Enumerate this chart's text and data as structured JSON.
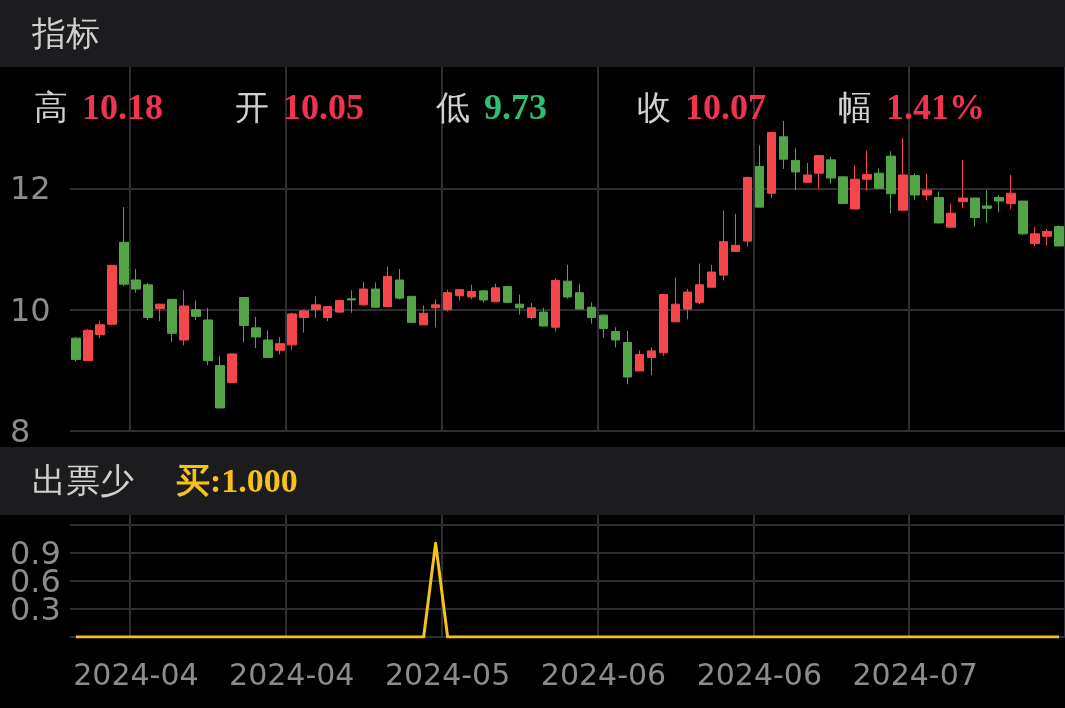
{
  "chart_data": [
    {
      "type": "candlestick",
      "title": "指标",
      "annotations": [
        "高 10.18",
        "开 10.05",
        "低 9.73",
        "收 10.07",
        "幅 1.41%"
      ],
      "categories": [
        null,
        null,
        null,
        null,
        null,
        "2024-04",
        null,
        null,
        null,
        null,
        null,
        null,
        null,
        null,
        null,
        null,
        null,
        null,
        "2024-04",
        null,
        null,
        null,
        null,
        null,
        null,
        null,
        null,
        null,
        null,
        null,
        null,
        "2024-05",
        null,
        null,
        null,
        null,
        null,
        null,
        null,
        null,
        null,
        null,
        null,
        null,
        "2024-06",
        null,
        null,
        null,
        null,
        null,
        null,
        null,
        null,
        null,
        null,
        null,
        null,
        "2024-06",
        null,
        null,
        null,
        null,
        null,
        null,
        null,
        null,
        null,
        null,
        null,
        null,
        "2024-07",
        null,
        null,
        null,
        null,
        null,
        null,
        null,
        null,
        null,
        null,
        null,
        null
      ],
      "ohlc": [
        [
          9.53,
          9.55,
          9.15,
          9.18
        ],
        [
          9.16,
          9.68,
          9.16,
          9.66
        ],
        [
          9.59,
          9.82,
          9.53,
          9.75
        ],
        [
          9.76,
          10.74,
          9.75,
          10.73
        ],
        [
          11.11,
          11.69,
          10.39,
          10.42
        ],
        [
          10.49,
          10.67,
          10.28,
          10.34
        ],
        [
          10.41,
          10.44,
          9.83,
          9.87
        ],
        [
          10.02,
          10.1,
          9.81,
          10.09
        ],
        [
          10.17,
          10.17,
          9.47,
          9.61
        ],
        [
          9.5,
          10.32,
          9.41,
          10.06
        ],
        [
          10.0,
          10.15,
          9.83,
          9.89
        ],
        [
          9.83,
          10.03,
          9.09,
          9.16
        ],
        [
          9.08,
          9.24,
          8.38,
          8.38
        ],
        [
          8.8,
          9.27,
          8.8,
          9.27
        ],
        [
          10.2,
          10.2,
          9.46,
          9.74
        ],
        [
          9.7,
          9.88,
          9.37,
          9.55
        ],
        [
          9.5,
          9.66,
          9.21,
          9.21
        ],
        [
          9.33,
          9.55,
          9.26,
          9.44
        ],
        [
          9.42,
          9.95,
          9.34,
          9.93
        ],
        [
          9.87,
          10.0,
          9.62,
          9.98
        ],
        [
          10.0,
          10.22,
          9.86,
          10.08
        ],
        [
          9.87,
          10.06,
          9.81,
          10.05
        ],
        [
          9.96,
          10.15,
          9.95,
          10.15
        ],
        [
          10.18,
          10.32,
          9.95,
          10.16
        ],
        [
          10.08,
          10.46,
          10.06,
          10.34
        ],
        [
          10.34,
          10.45,
          10.04,
          10.04
        ],
        [
          10.05,
          10.71,
          10.05,
          10.55
        ],
        [
          10.49,
          10.67,
          10.17,
          10.19
        ],
        [
          10.22,
          10.22,
          9.79,
          9.79
        ],
        [
          9.75,
          10.07,
          9.75,
          9.94
        ],
        [
          10.03,
          10.17,
          9.71,
          10.08
        ],
        [
          10.0,
          10.33,
          9.97,
          10.28
        ],
        [
          10.23,
          10.34,
          10.15,
          10.33
        ],
        [
          10.21,
          10.41,
          10.17,
          10.3
        ],
        [
          10.31,
          10.32,
          10.12,
          10.16
        ],
        [
          10.13,
          10.43,
          10.13,
          10.36
        ],
        [
          10.38,
          10.39,
          10.11,
          10.12
        ],
        [
          10.09,
          10.25,
          9.92,
          10.03
        ],
        [
          9.87,
          10.11,
          9.84,
          10.03
        ],
        [
          9.96,
          10.03,
          9.73,
          9.73
        ],
        [
          9.71,
          10.51,
          9.64,
          10.48
        ],
        [
          10.47,
          10.74,
          10.18,
          10.21
        ],
        [
          10.28,
          10.43,
          10.01,
          10.01
        ],
        [
          10.04,
          10.12,
          9.77,
          9.87
        ],
        [
          9.91,
          9.92,
          9.54,
          9.69
        ],
        [
          9.64,
          9.71,
          9.38,
          9.5
        ],
        [
          9.46,
          9.65,
          8.77,
          8.89
        ],
        [
          8.99,
          9.33,
          8.99,
          9.26
        ],
        [
          9.21,
          9.38,
          8.92,
          9.32
        ],
        [
          9.29,
          10.26,
          9.24,
          10.25
        ],
        [
          9.8,
          10.53,
          9.8,
          10.09
        ],
        [
          10.01,
          10.34,
          9.84,
          10.29
        ],
        [
          10.12,
          10.76,
          10.09,
          10.41
        ],
        [
          10.37,
          10.74,
          10.37,
          10.62
        ],
        [
          10.57,
          11.63,
          10.48,
          11.12
        ],
        [
          10.96,
          11.58,
          10.95,
          11.06
        ],
        [
          11.13,
          12.19,
          11.04,
          12.18
        ],
        [
          12.36,
          12.71,
          11.69,
          11.69
        ],
        [
          11.92,
          12.93,
          11.84,
          12.92
        ],
        [
          12.85,
          13.11,
          12.32,
          12.48
        ],
        [
          12.46,
          12.66,
          11.97,
          12.27
        ],
        [
          12.1,
          12.42,
          12.1,
          12.22
        ],
        [
          12.25,
          12.55,
          11.99,
          12.54
        ],
        [
          12.47,
          12.52,
          12.08,
          12.17
        ],
        [
          12.19,
          12.19,
          11.75,
          11.75
        ],
        [
          11.66,
          12.38,
          11.66,
          12.15
        ],
        [
          12.15,
          12.62,
          11.96,
          12.23
        ],
        [
          12.25,
          12.33,
          12.0,
          12.0
        ],
        [
          12.53,
          12.61,
          11.59,
          11.91
        ],
        [
          11.64,
          12.83,
          11.64,
          12.22
        ],
        [
          12.21,
          12.25,
          11.81,
          11.89
        ],
        [
          11.89,
          12.24,
          11.8,
          11.97
        ],
        [
          11.85,
          11.95,
          11.42,
          11.43
        ],
        [
          11.36,
          11.75,
          11.35,
          11.59
        ],
        [
          11.78,
          12.47,
          11.67,
          11.84
        ],
        [
          11.84,
          11.84,
          11.37,
          11.52
        ],
        [
          11.71,
          11.97,
          11.43,
          11.67
        ],
        [
          11.85,
          11.89,
          11.61,
          11.79
        ],
        [
          11.75,
          12.22,
          11.66,
          11.92
        ],
        [
          11.79,
          11.79,
          11.23,
          11.25
        ],
        [
          11.09,
          11.36,
          11.05,
          11.25
        ],
        [
          11.21,
          11.33,
          11.06,
          11.29
        ],
        [
          11.37,
          11.39,
          11.05,
          11.05
        ]
      ],
      "ylim": [
        8,
        14
      ],
      "yticks": [
        8,
        10,
        12
      ],
      "grid": true,
      "tick_labels": "y"
    },
    {
      "type": "line",
      "title": "出票少",
      "annotations": [
        "买:1.000"
      ],
      "categories": [
        null,
        null,
        null,
        null,
        null,
        "2024-04",
        null,
        null,
        null,
        null,
        null,
        null,
        null,
        null,
        null,
        null,
        null,
        null,
        "2024-04",
        null,
        null,
        null,
        null,
        null,
        null,
        null,
        null,
        null,
        null,
        null,
        null,
        "2024-05",
        null,
        null,
        null,
        null,
        null,
        null,
        null,
        null,
        null,
        null,
        null,
        null,
        "2024-06",
        null,
        null,
        null,
        null,
        null,
        null,
        null,
        null,
        null,
        null,
        null,
        null,
        "2024-06",
        null,
        null,
        null,
        null,
        null,
        null,
        null,
        null,
        null,
        null,
        null,
        null,
        "2024-07",
        null,
        null,
        null,
        null,
        null,
        null,
        null,
        null,
        null,
        null,
        null,
        null
      ],
      "series": [
        {
          "color": "#f5c21b",
          "values": [
            0,
            0,
            0,
            0,
            0,
            0,
            0,
            0,
            0,
            0,
            0,
            0,
            0,
            0,
            0,
            0,
            0,
            0,
            0,
            0,
            0,
            0,
            0,
            0,
            0,
            0,
            0,
            0,
            0,
            0,
            1,
            0,
            0,
            0,
            0,
            0,
            0,
            0,
            0,
            0,
            0,
            0,
            0,
            0,
            0,
            0,
            0,
            0,
            0,
            0,
            0,
            0,
            0,
            0,
            0,
            0,
            0,
            0,
            0,
            0,
            0,
            0,
            0,
            0,
            0,
            0,
            0,
            0,
            0,
            0,
            0,
            0,
            0,
            0,
            0,
            0,
            0,
            0,
            0,
            0,
            0,
            0,
            0
          ]
        }
      ],
      "ylim": [
        0,
        1.3
      ],
      "yticks": [
        {
          "value": 0,
          "label": null
        },
        0.3,
        0.6,
        0.9,
        {
          "value": 1.2,
          "label": null
        }
      ],
      "grid": true,
      "marker": "none",
      "line_style": "solid"
    }
  ]
}
